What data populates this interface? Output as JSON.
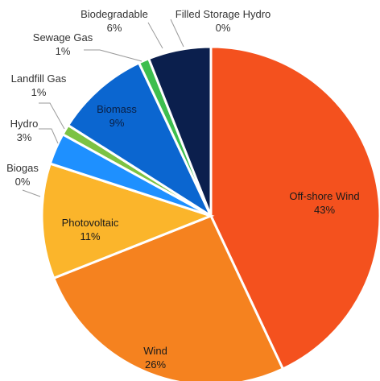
{
  "chart_data": {
    "type": "pie",
    "title": "",
    "slices": [
      {
        "name": "Off-shore Wind",
        "value": 43,
        "label": "43%",
        "color": "#F4511E"
      },
      {
        "name": "Wind",
        "value": 26,
        "label": "26%",
        "color": "#F5821F"
      },
      {
        "name": "Photovoltaic",
        "value": 11,
        "label": "11%",
        "color": "#FBB52B"
      },
      {
        "name": "Biogas",
        "value": 0,
        "label": "0%",
        "color": "#C9A227"
      },
      {
        "name": "Hydro",
        "value": 3,
        "label": "3%",
        "color": "#1E90FF"
      },
      {
        "name": "Landfill Gas",
        "value": 1,
        "label": "1%",
        "color": "#7CC243"
      },
      {
        "name": "Biomass",
        "value": 9,
        "label": "9%",
        "color": "#0B66D0"
      },
      {
        "name": "Sewage Gas",
        "value": 1,
        "label": "1%",
        "color": "#3DBE4E"
      },
      {
        "name": "Biodegradable",
        "value": 6,
        "label": "6%",
        "color": "#0B1F4D"
      },
      {
        "name": "Filled Storage Hydro",
        "value": 0,
        "label": "0%",
        "color": "#5A5A5A"
      }
    ]
  }
}
